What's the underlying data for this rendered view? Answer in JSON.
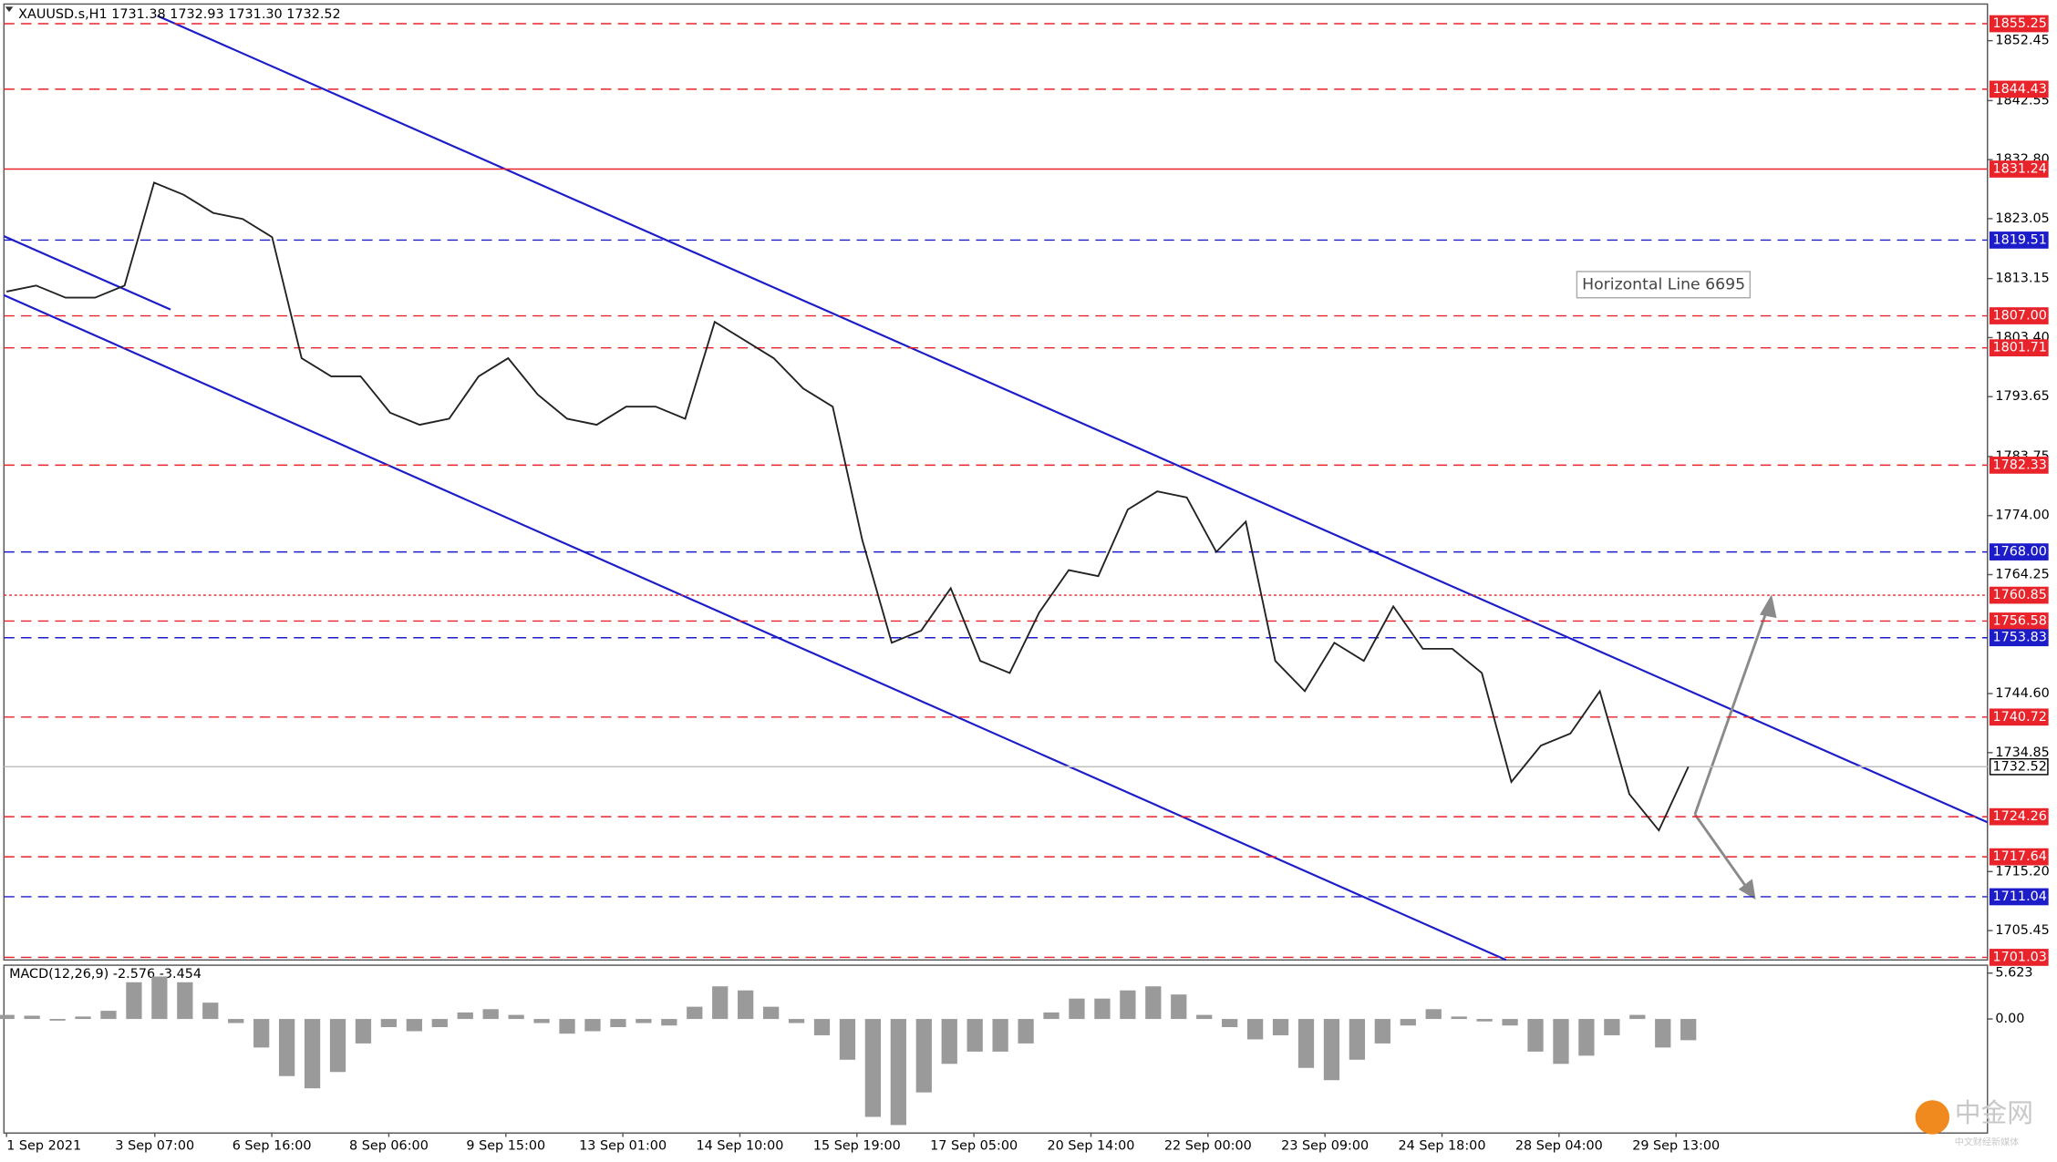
{
  "chart_data": {
    "type": "price-chart",
    "header": "XAUUSD.s,H1  1731.38 1732.93 1731.30 1732.52",
    "annotation": "Horizontal Line 6695",
    "watermark": "中金网",
    "watermark_sub": "中文财经新媒体",
    "ylim": [
      1700.6,
      1858.5
    ],
    "yticks": [
      1852.45,
      {
        "value": 1842.55,
        "label": "1842.55"
      },
      {
        "value": 1832.8,
        "label": "1832.80"
      },
      1823.05,
      1813.15,
      {
        "value": 1803.4,
        "label": "1803.40"
      },
      1793.65,
      1783.75,
      {
        "value": 1774,
        "label": "1774.00"
      },
      1764.25,
      {
        "value": 1744.6,
        "label": "1744.60"
      },
      1734.85,
      {
        "value": 1715.2,
        "label": "1715.20"
      },
      1705.45
    ],
    "x": [
      "1 Sep 2021",
      "3 Sep 07:00",
      "6 Sep 16:00",
      "8 Sep 06:00",
      "9 Sep 15:00",
      "13 Sep 01:00",
      "14 Sep 10:00",
      "15 Sep 19:00",
      "17 Sep 05:00",
      "20 Sep 14:00",
      "22 Sep 00:00",
      "23 Sep 09:00",
      "24 Sep 18:00",
      "28 Sep 04:00",
      "29 Sep 13:00"
    ],
    "levels": [
      {
        "value": 1855.25,
        "color": "#e8232a",
        "style": "dashed"
      },
      {
        "value": 1844.43,
        "color": "#e8232a",
        "style": "dashed"
      },
      {
        "value": 1831.24,
        "color": "#e8232a",
        "style": "solid"
      },
      {
        "value": 1819.51,
        "color": "#1c1cc8",
        "style": "dashed"
      },
      {
        "value": 1807,
        "label": "1807.00",
        "color": "#e8232a",
        "style": "dashed"
      },
      {
        "value": 1801.71,
        "color": "#e8232a",
        "style": "dashed"
      },
      {
        "value": 1782.33,
        "color": "#e8232a",
        "style": "dashed"
      },
      {
        "value": 1768,
        "label": "1768.00",
        "color": "#1c1cc8",
        "style": "dashed"
      },
      {
        "value": 1760.85,
        "color": "#e8232a",
        "style": "dotted"
      },
      {
        "value": 1756.58,
        "color": "#e8232a",
        "style": "dashed"
      },
      {
        "value": 1753.83,
        "color": "#1c1cc8",
        "style": "dashed"
      },
      {
        "value": 1740.72,
        "color": "#e8232a",
        "style": "dashed"
      },
      {
        "value": 1732.52,
        "color": "#c0c0c0",
        "style": "solid"
      },
      {
        "value": 1724.26,
        "color": "#e8232a",
        "style": "dashed"
      },
      {
        "value": 1717.64,
        "color": "#e8232a",
        "style": "dashed"
      },
      {
        "value": 1711.04,
        "color": "#1c1cc8",
        "style": "dashed"
      },
      {
        "value": 1701.03,
        "color": "#e8232a",
        "style": "dashed"
      }
    ],
    "close": {
      "color": "#222222",
      "values": [
        1811,
        1812,
        1810,
        1810,
        1812,
        1829,
        1827,
        1824,
        1823,
        1820,
        1800,
        1797,
        1797,
        1791,
        1789,
        1790,
        1797,
        1800,
        1794,
        1790,
        1789,
        1792,
        1792,
        1790,
        1806,
        1803,
        1800,
        1795,
        1792,
        1770,
        1753,
        1755,
        1762,
        1750,
        1748,
        1758,
        1765,
        1764,
        1775,
        1778,
        1777,
        1768,
        1773,
        1750,
        1745,
        1753,
        1750,
        1759,
        1752,
        1752,
        1748,
        1730,
        1736,
        1738,
        1745,
        1728,
        1722,
        1732.52
      ]
    },
    "macd": {
      "label": "MACD(12,26,9) -2.576 -3.454",
      "ylim": [
        -13.98,
        6.59
      ],
      "yticks": [
        5.623,
        {
          "value": 0,
          "label": "0.00"
        }
      ],
      "color": "#9a9a9a",
      "values": [
        0.5,
        0.4,
        -0.2,
        0.3,
        1.0,
        4.5,
        5.2,
        4.5,
        2.0,
        -0.5,
        -3.5,
        -7.0,
        -8.5,
        -6.5,
        -3.0,
        -1.0,
        -1.5,
        -1.0,
        0.8,
        1.2,
        0.5,
        -0.5,
        -1.8,
        -1.5,
        -1.0,
        -0.5,
        -0.8,
        1.5,
        4.0,
        3.5,
        1.5,
        -0.5,
        -2.0,
        -5.0,
        -12.0,
        -13.0,
        -9.0,
        -5.5,
        -4.0,
        -4.0,
        -3.0,
        0.8,
        2.5,
        2.5,
        3.5,
        4.0,
        3.0,
        0.5,
        -1.0,
        -2.5,
        -2.0,
        -6.0,
        -7.5,
        -5.0,
        -3.0,
        -0.8,
        1.2,
        0.3,
        -0.3,
        -0.8,
        -4.0,
        -5.5,
        -4.5,
        -2.0,
        0.5,
        -3.5,
        -2.6
      ]
    }
  }
}
